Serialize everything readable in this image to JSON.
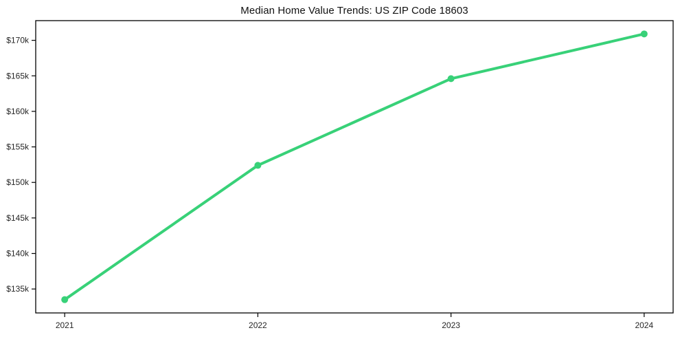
{
  "chart_data": {
    "type": "line",
    "title": "Median Home Value Trends: US ZIP Code 18603",
    "categories": [
      "2021",
      "2022",
      "2023",
      "2024"
    ],
    "series": [
      {
        "name": "Median Home Value",
        "values": [
          133500,
          152400,
          164600,
          170900
        ]
      }
    ],
    "xlabel": "",
    "ylabel": "",
    "yticks": [
      135000,
      140000,
      145000,
      150000,
      155000,
      160000,
      165000,
      170000
    ],
    "ytick_labels": [
      "$135k",
      "$140k",
      "$145k",
      "$150k",
      "$155k",
      "$160k",
      "$165k",
      "$170k"
    ],
    "ylim": [
      131630,
      172770
    ],
    "xlim": [
      -0.15,
      3.15
    ],
    "grid": false,
    "legend_position": "none",
    "line_color": "#38d178",
    "marker": "circle",
    "marker_size": 5,
    "line_width": 4,
    "spine_color": "#000000",
    "background_color": "#ffffff",
    "text_color": "#262626",
    "title_color": "#111111"
  }
}
